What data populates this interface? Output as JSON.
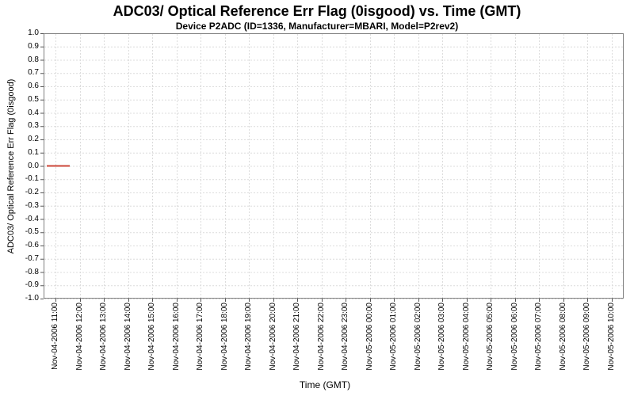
{
  "chart_data": {
    "type": "line",
    "title": "ADC03/ Optical Reference Err Flag (0isgood) vs. Time (GMT)",
    "subtitle": "Device P2ADC (ID=1336, Manufacturer=MBARI, Model=P2rev2)",
    "xlabel": "Time (GMT)",
    "ylabel": "ADC03/ Optical Reference Err Flag (0isgood)",
    "ylim": [
      -1.0,
      1.0
    ],
    "y_tick_step": 0.1,
    "y_tick_labels": [
      "1.0",
      "0.9",
      "0.8",
      "0.7",
      "0.6",
      "0.5",
      "0.4",
      "0.3",
      "0.2",
      "0.1",
      "0.0",
      "-0.1",
      "-0.2",
      "-0.3",
      "-0.4",
      "-0.5",
      "-0.6",
      "-0.7",
      "-0.8",
      "-0.9",
      "-1.0"
    ],
    "x_tick_labels": [
      "Nov-04-2006 11:00",
      "Nov-04-2006 12:00",
      "Nov-04-2006 13:00",
      "Nov-04-2006 14:00",
      "Nov-04-2006 15:00",
      "Nov-04-2006 16:00",
      "Nov-04-2006 17:00",
      "Nov-04-2006 18:00",
      "Nov-04-2006 19:00",
      "Nov-04-2006 20:00",
      "Nov-04-2006 21:00",
      "Nov-04-2006 22:00",
      "Nov-04-2006 23:00",
      "Nov-05-2006 00:00",
      "Nov-05-2006 01:00",
      "Nov-05-2006 02:00",
      "Nov-05-2006 03:00",
      "Nov-05-2006 04:00",
      "Nov-05-2006 05:00",
      "Nov-05-2006 06:00",
      "Nov-05-2006 07:00",
      "Nov-05-2006 08:00",
      "Nov-05-2006 09:00",
      "Nov-05-2006 10:00"
    ],
    "grid": true,
    "legend": "none",
    "colors": {
      "series": "#cb4437",
      "grid": "#dcdcdc",
      "border": "#808080",
      "tick_mark": "#555555",
      "text": "#000000",
      "background": "#ffffff"
    },
    "series": [
      {
        "name": "ADC03/ Optical Reference Err Flag (0isgood)",
        "constant_value": 0.0,
        "points": [
          {
            "time": "Nov-04-2006 10:38",
            "x_hours_from_first_tick": -0.36,
            "y": 0.0
          },
          {
            "time": "Nov-04-2006 11:35",
            "x_hours_from_first_tick": 0.59,
            "y": 0.0
          }
        ]
      }
    ]
  }
}
